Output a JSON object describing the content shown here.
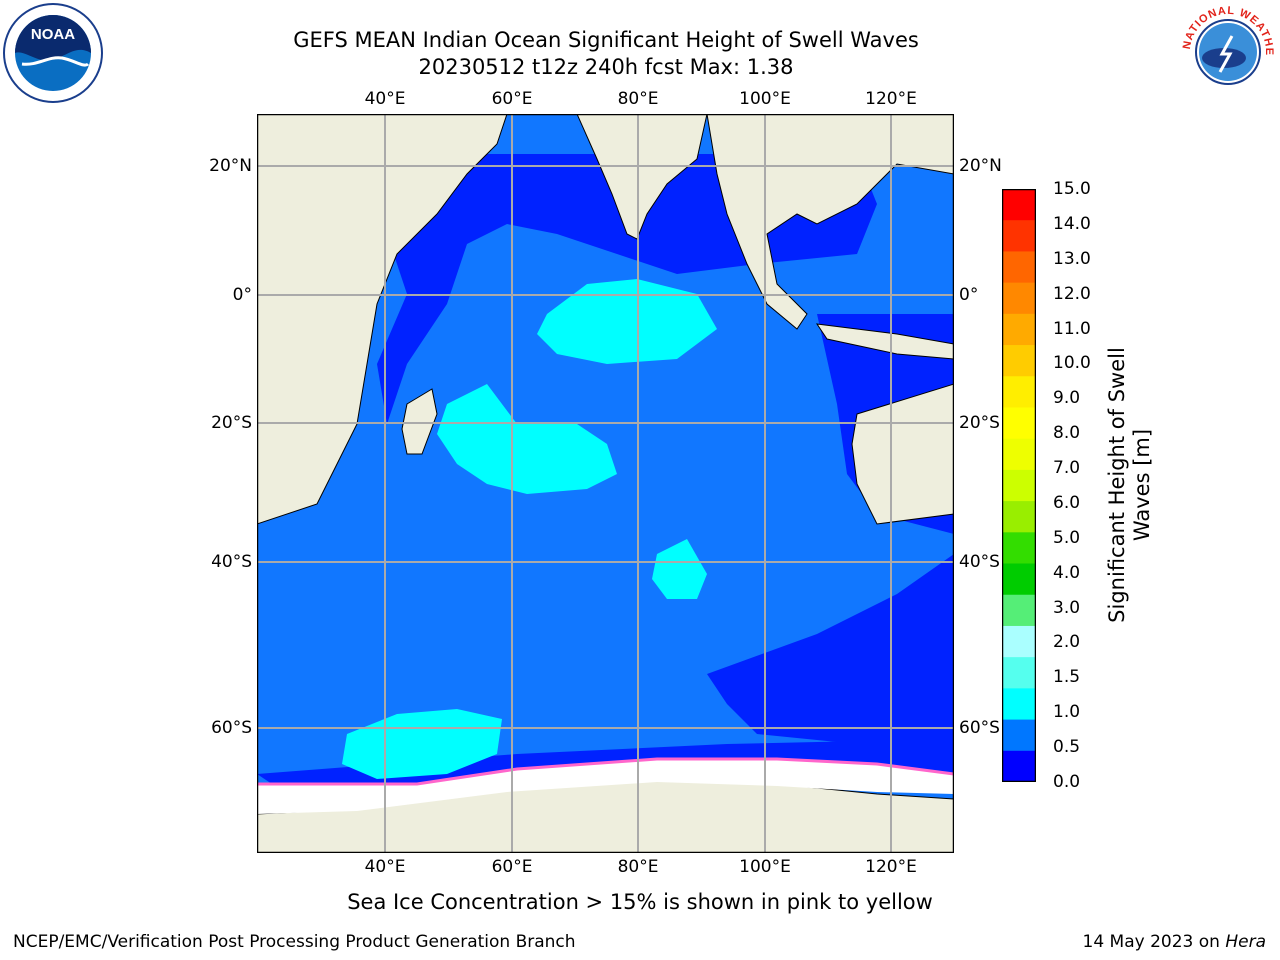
{
  "title": {
    "line1": "GEFS MEAN Indian Ocean Significant Height of Swell Waves",
    "line2": "20230512 t12z 240h fcst   Max: 1.38"
  },
  "axes": {
    "lon_ticks": [
      "40°E",
      "60°E",
      "80°E",
      "100°E",
      "120°E"
    ],
    "lat_ticks": [
      "20°N",
      "0°",
      "20°S",
      "40°S",
      "60°S"
    ]
  },
  "colorbar": {
    "title_line1": "Significant Height of Swell",
    "title_line2": "Waves [m]",
    "labels": [
      "15.0",
      "14.0",
      "13.0",
      "12.0",
      "11.0",
      "10.0",
      "9.0",
      "8.0",
      "7.0",
      "6.0",
      "5.0",
      "4.0",
      "3.0",
      "2.0",
      "1.5",
      "1.0",
      "0.5",
      "0.0"
    ],
    "colors": [
      "#ff0000",
      "#ff3300",
      "#ff6600",
      "#ff8800",
      "#ffaa00",
      "#ffcc00",
      "#ffee00",
      "#ffff00",
      "#eeff00",
      "#ccff00",
      "#99ee00",
      "#33dd00",
      "#00cc00",
      "#55ee77",
      "#aaffff",
      "#55ffee",
      "#00ffff",
      "#0077ff",
      "#0000ff"
    ]
  },
  "caption": "Sea Ice Concentration > 15% is shown in pink to yellow",
  "footer": {
    "left": "NCEP/EMC/Verification Post Processing Product Generation Branch",
    "right_date": "14 May 2023 on ",
    "right_machine": "Hera"
  },
  "logos": {
    "noaa_text": "NOAA",
    "nws_text": "NATIONAL WEATHER SERVICE"
  },
  "map_colors": {
    "land": "#eeeedd",
    "ocean_deep": "#0022ff",
    "ocean_mid": "#1177ff",
    "swell_high": "#00ffff",
    "ice": "#ffffff",
    "ice_edge": "#ff66cc",
    "grid": "#aaaaaa"
  }
}
